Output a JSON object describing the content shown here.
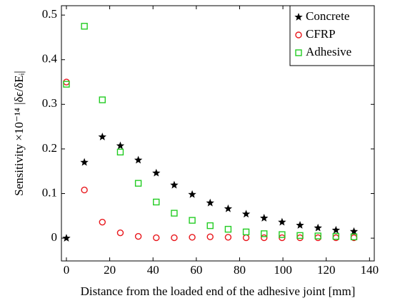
{
  "chart_data": {
    "type": "scatter",
    "x_label": "Distance from the loaded end of the adhesive joint [mm]",
    "y_label": "Sensitivity ×10⁻¹⁴ |δϵ/δEᵢ|",
    "x": [
      0,
      8.3,
      16.6,
      24.9,
      33.2,
      41.5,
      49.8,
      58.1,
      66.4,
      74.7,
      83,
      91.3,
      99.6,
      107.9,
      116.2,
      124.5,
      132.8
    ],
    "series": [
      {
        "name": "Concrete",
        "color": "#000000",
        "marker": "star",
        "values": [
          0,
          0.17,
          0.227,
          0.207,
          0.175,
          0.146,
          0.119,
          0.098,
          0.079,
          0.066,
          0.054,
          0.045,
          0.036,
          0.029,
          0.023,
          0.018,
          0.015
        ]
      },
      {
        "name": "CFRP",
        "color": "#e8161b",
        "marker": "circle",
        "values": [
          0.35,
          0.108,
          0.036,
          0.012,
          0.004,
          0.001,
          0.001,
          0.002,
          0.003,
          0.002,
          0.001,
          0.001,
          0.001,
          0.001,
          0.001,
          0.001,
          0.001
        ]
      },
      {
        "name": "Adhesive",
        "color": "#22cc22",
        "marker": "square",
        "values": [
          0.345,
          0.475,
          0.31,
          0.193,
          0.123,
          0.081,
          0.056,
          0.04,
          0.028,
          0.02,
          0.014,
          0.01,
          0.008,
          0.006,
          0.005,
          0.004,
          0.003
        ]
      }
    ],
    "xlim": [
      -2.3,
      142.2
    ],
    "ylim": [
      -0.051,
      0.521
    ],
    "xticks": [
      0,
      20,
      40,
      60,
      80,
      100,
      120,
      140
    ],
    "yticks": [
      0,
      0.1,
      0.2,
      0.3,
      0.4,
      0.5
    ],
    "legend": "upper right"
  }
}
